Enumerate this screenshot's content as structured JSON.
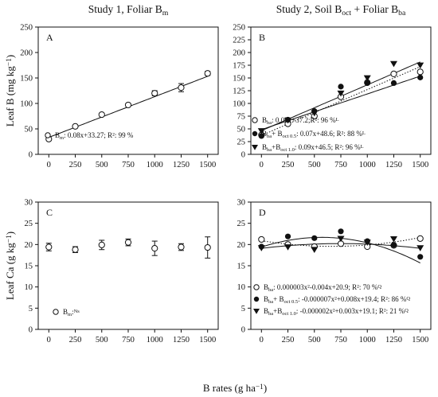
{
  "figure": {
    "col_titles": [
      {
        "main": "Study 1, Foliar B",
        "sub": "m"
      },
      {
        "main": "Study 2, Soil B",
        "sub": "oct",
        "mid": " + Foliar B",
        "sub2": "ba"
      }
    ],
    "ylabels": [
      {
        "main": "Leaf B (mg kg",
        "sup": "−1",
        "end": ")"
      },
      {
        "main": "Leaf Ca (g kg",
        "sup": "−1",
        "end": ")"
      }
    ],
    "xlabel": {
      "main": "B rates (g ha",
      "sup": "−1",
      "end": ")"
    }
  },
  "chart_data": [
    {
      "panel": "A",
      "type": "scatter",
      "xticks": [
        "0",
        "250",
        "500",
        "750",
        "1000",
        "1250",
        "1500"
      ],
      "yticks": [
        "0",
        "50",
        "100",
        "150",
        "200",
        "250"
      ],
      "xlim": [
        -100,
        1600
      ],
      "ylim": [
        0,
        250
      ],
      "series": [
        {
          "name": "Bm",
          "marker": "open-circle",
          "x": [
            0,
            250,
            500,
            750,
            1000,
            1250,
            1500
          ],
          "y": [
            30,
            55,
            78,
            97,
            120,
            131,
            159
          ],
          "err": [
            0,
            0,
            0,
            0,
            5,
            8,
            4
          ],
          "fit": {
            "style": "solid",
            "slope": 0.08,
            "intercept": 33.27
          }
        }
      ],
      "legend": [
        {
          "marker": "open-circle",
          "label": [
            {
              "t": "B",
              "v": "base"
            },
            {
              "t": "m",
              "v": "sub"
            },
            {
              "t": ": 0.08x+33.27; R²: 99 %",
              "v": "base"
            }
          ]
        }
      ]
    },
    {
      "panel": "B",
      "type": "scatter",
      "xticks": [
        "0",
        "250",
        "500",
        "750",
        "1000",
        "1250",
        "1500"
      ],
      "yticks": [
        "0",
        "25",
        "50",
        "75",
        "100",
        "125",
        "150",
        "175",
        "200",
        "225",
        "250"
      ],
      "xlim": [
        -100,
        1600
      ],
      "ylim": [
        0,
        250
      ],
      "series": [
        {
          "name": "Bba",
          "marker": "open-circle",
          "x": [
            0,
            250,
            500,
            750,
            1000,
            1250,
            1500
          ],
          "y": [
            38,
            60,
            75,
            113,
            141,
            158,
            162
          ],
          "fit": {
            "style": "dotted",
            "slope": 0.09,
            "intercept": 37.2
          }
        },
        {
          "name": "Bba+Boct0.5",
          "marker": "filled-circle",
          "x": [
            0,
            250,
            500,
            750,
            1000,
            1250,
            1500
          ],
          "y": [
            36,
            68,
            85,
            133,
            140,
            140,
            151
          ],
          "fit": {
            "style": "solid",
            "slope": 0.07,
            "intercept": 48.6
          }
        },
        {
          "name": "Bba+Boct1.0",
          "marker": "filled-triangle",
          "x": [
            0,
            250,
            500,
            750,
            1000,
            1250,
            1500
          ],
          "y": [
            46,
            67,
            81,
            120,
            150,
            178,
            175
          ],
          "fit": {
            "style": "solid",
            "slope": 0.09,
            "intercept": 46.5
          }
        }
      ],
      "legend": [
        {
          "marker": "open-circle",
          "label": [
            {
              "t": "B",
              "v": "base"
            },
            {
              "t": "ba",
              "v": "sub"
            },
            {
              "t": ": 0.09x+37.2;R²: 96 %",
              "v": "base"
            },
            {
              "t": "L",
              "v": "sup"
            }
          ]
        },
        {
          "marker": "filled-circle",
          "label": [
            {
              "t": "B",
              "v": "base"
            },
            {
              "t": "ba",
              "v": "sub"
            },
            {
              "t": "+ B",
              "v": "base"
            },
            {
              "t": "oct 0.5",
              "v": "sub"
            },
            {
              "t": ": 0.07x+48.6; R²: 88 %",
              "v": "base"
            },
            {
              "t": "L",
              "v": "sup"
            }
          ]
        },
        {
          "marker": "filled-triangle",
          "label": [
            {
              "t": "B",
              "v": "base"
            },
            {
              "t": "ba",
              "v": "sub"
            },
            {
              "t": "+B",
              "v": "base"
            },
            {
              "t": "oct 1.0",
              "v": "sub"
            },
            {
              "t": ": 0.09x+46.5; R²: 96 %",
              "v": "base"
            },
            {
              "t": "L",
              "v": "sup"
            }
          ]
        }
      ]
    },
    {
      "panel": "C",
      "type": "scatter",
      "xticks": [
        "0",
        "250",
        "500",
        "750",
        "1000",
        "1250",
        "1500"
      ],
      "yticks": [
        "0",
        "5",
        "10",
        "15",
        "20",
        "25",
        "30"
      ],
      "xlim": [
        -100,
        1600
      ],
      "ylim": [
        0,
        30
      ],
      "series": [
        {
          "name": "Bm",
          "marker": "open-circle",
          "x": [
            0,
            250,
            500,
            750,
            1000,
            1250,
            1500
          ],
          "y": [
            19.4,
            18.8,
            19.9,
            20.5,
            19.1,
            19.4,
            19.3
          ],
          "err": [
            0.9,
            0.7,
            1.1,
            0.8,
            1.7,
            0.8,
            2.5
          ]
        }
      ],
      "legend": [
        {
          "marker": "open-circle",
          "label": [
            {
              "t": "B",
              "v": "base"
            },
            {
              "t": "m",
              "v": "sub"
            },
            {
              "t": ":",
              "v": "base"
            },
            {
              "t": "Ns",
              "v": "sup"
            }
          ]
        }
      ]
    },
    {
      "panel": "D",
      "type": "scatter",
      "xticks": [
        "0",
        "250",
        "500",
        "750",
        "1000",
        "1250",
        "1500"
      ],
      "yticks": [
        "0",
        "5",
        "10",
        "15",
        "20",
        "25",
        "30"
      ],
      "xlim": [
        -100,
        1600
      ],
      "ylim": [
        0,
        30
      ],
      "series": [
        {
          "name": "Bba",
          "marker": "open-circle",
          "x": [
            0,
            250,
            500,
            750,
            1000,
            1250,
            1500
          ],
          "y": [
            21.2,
            20.0,
            19.5,
            20.2,
            19.5,
            19.8,
            21.4
          ],
          "fit": {
            "style": "dotted",
            "a": 3e-06,
            "b": -0.004,
            "c": 20.9
          }
        },
        {
          "name": "Bba+Boct0.5",
          "marker": "filled-circle",
          "x": [
            0,
            250,
            500,
            750,
            1000,
            1250,
            1500
          ],
          "y": [
            19.5,
            21.9,
            21.5,
            23.1,
            20.8,
            19.9,
            17.1
          ],
          "fit": {
            "style": "solid",
            "a": -7e-06,
            "b": 0.008,
            "c": 19.4
          }
        },
        {
          "name": "Bba+Boct1.0",
          "marker": "filled-triangle",
          "x": [
            0,
            250,
            500,
            750,
            1000,
            1250,
            1500
          ],
          "y": [
            19.2,
            19.4,
            18.8,
            21.4,
            20.5,
            21.3,
            19.2
          ],
          "fit": {
            "style": "solid",
            "a": -2e-06,
            "b": 0.003,
            "c": 19.1
          }
        }
      ],
      "legend": [
        {
          "marker": "open-circle",
          "label": [
            {
              "t": "B",
              "v": "base"
            },
            {
              "t": "ba",
              "v": "sub"
            },
            {
              "t": ": 0.000003x²-0.004x+20.9; R²: 70 %",
              "v": "base"
            },
            {
              "t": "Q",
              "v": "sup"
            }
          ]
        },
        {
          "marker": "filled-circle",
          "label": [
            {
              "t": "B",
              "v": "base"
            },
            {
              "t": "ba",
              "v": "sub"
            },
            {
              "t": "+ B",
              "v": "base"
            },
            {
              "t": "oct 0.5",
              "v": "sub"
            },
            {
              "t": ": -0.000007x²+0.008x+19.4; R²: 86 %",
              "v": "base"
            },
            {
              "t": "Q",
              "v": "sup"
            }
          ]
        },
        {
          "marker": "filled-triangle",
          "label": [
            {
              "t": "B",
              "v": "base"
            },
            {
              "t": "ba",
              "v": "sub"
            },
            {
              "t": "+B",
              "v": "base"
            },
            {
              "t": "oct 1.0",
              "v": "sub"
            },
            {
              "t": ": -0.000002x²+0.003x+19.1; R²: 21 %",
              "v": "base"
            },
            {
              "t": "Q",
              "v": "sup"
            }
          ]
        }
      ]
    }
  ]
}
